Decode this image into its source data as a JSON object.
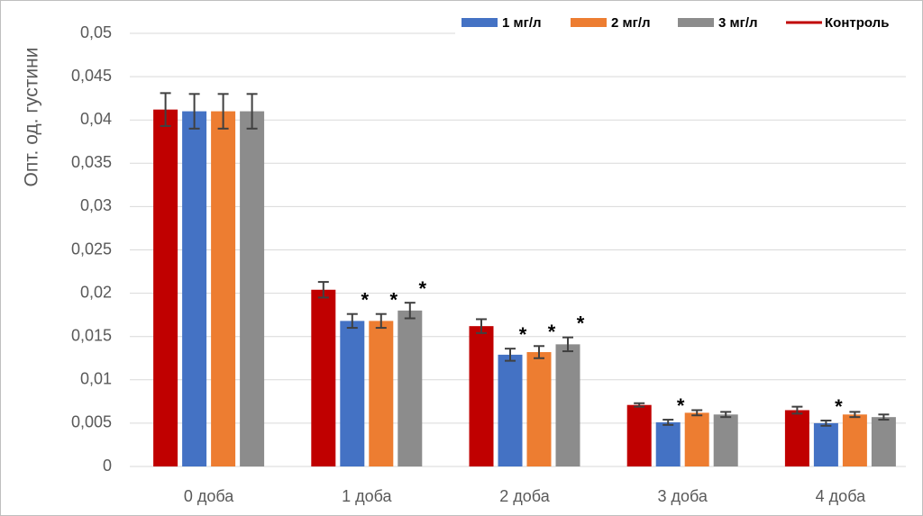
{
  "chart_data": {
    "type": "bar",
    "ylabel": "Опт. од. густини",
    "categories": [
      "0 доба",
      "1 доба",
      "2 доба",
      "3 доба",
      "4 доба"
    ],
    "series": [
      {
        "name": "1 мг/л",
        "color": "#4472c4",
        "values": [
          0.041,
          0.0168,
          0.0129,
          0.0051,
          0.005
        ],
        "errors": [
          0.002,
          0.0008,
          0.0007,
          0.0003,
          0.0003
        ],
        "annotations": [
          null,
          "*",
          "*",
          "*",
          "*"
        ]
      },
      {
        "name": "2 мг/л",
        "color": "#ed7d31",
        "values": [
          0.041,
          0.0168,
          0.0132,
          0.0062,
          0.006
        ],
        "errors": [
          0.002,
          0.0008,
          0.0007,
          0.0003,
          0.0003
        ],
        "annotations": [
          null,
          "*",
          "*",
          null,
          null
        ]
      },
      {
        "name": "3 мг/л",
        "color": "#8c8c8c",
        "values": [
          0.041,
          0.018,
          0.0141,
          0.006,
          0.0057
        ],
        "errors": [
          0.002,
          0.0009,
          0.0008,
          0.0003,
          0.0003
        ],
        "annotations": [
          null,
          "*",
          "*",
          null,
          null
        ]
      },
      {
        "name": "Контроль",
        "color": "#c00000",
        "values": [
          0.0412,
          0.0204,
          0.0162,
          0.0071,
          0.0065
        ],
        "errors": [
          0.0019,
          0.0009,
          0.0008,
          0.0002,
          0.0004
        ],
        "annotations": [
          null,
          null,
          null,
          null,
          null
        ],
        "legend_style": "line"
      }
    ],
    "ylim": [
      0,
      0.05
    ],
    "yticks": [
      0,
      {
        "value": 0.005,
        "label": "0,005"
      },
      {
        "value": 0.01,
        "label": "0,01"
      },
      {
        "value": 0.015,
        "label": "0,015"
      },
      {
        "value": 0.02,
        "label": "0,02"
      },
      {
        "value": 0.025,
        "label": "0,025"
      },
      {
        "value": 0.03,
        "label": "0,03"
      },
      {
        "value": 0.035,
        "label": "0,035"
      },
      {
        "value": 0.04,
        "label": "0,04"
      },
      {
        "value": 0.045,
        "label": "0,045"
      },
      {
        "value": 0.05,
        "label": "0,05"
      }
    ],
    "grid": true,
    "legend": "top-right"
  }
}
